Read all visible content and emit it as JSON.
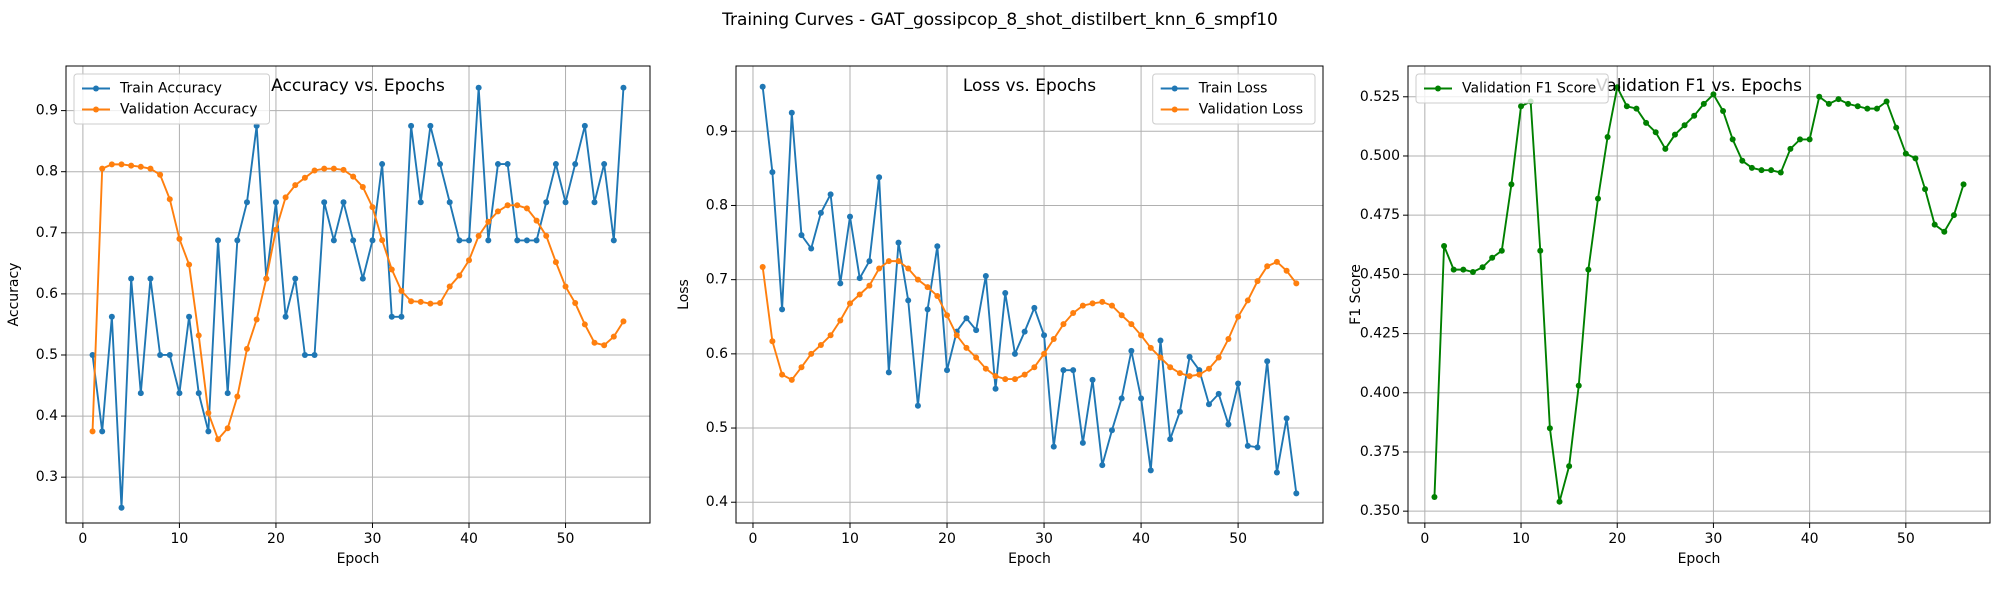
{
  "title": "Training Curves - GAT_gossipcop_8_shot_distilbert_knn_6_smpf10",
  "chart_data": [
    {
      "type": "line",
      "title": "Accuracy vs. Epochs",
      "xlabel": "Epoch",
      "ylabel": "Accuracy",
      "x": [
        1,
        2,
        3,
        4,
        5,
        6,
        7,
        8,
        9,
        10,
        11,
        12,
        13,
        14,
        15,
        16,
        17,
        18,
        19,
        20,
        21,
        22,
        23,
        24,
        25,
        26,
        27,
        28,
        29,
        30,
        31,
        32,
        33,
        34,
        35,
        36,
        37,
        38,
        39,
        40,
        41,
        42,
        43,
        44,
        45,
        46,
        47,
        48,
        49,
        50,
        51,
        52,
        53,
        54,
        55,
        56
      ],
      "series": [
        {
          "name": "Train Accuracy",
          "color": "#1f77b4",
          "values": [
            0.5,
            0.375,
            0.5625,
            0.25,
            0.625,
            0.4375,
            0.625,
            0.5,
            0.5,
            0.4375,
            0.5625,
            0.4375,
            0.375,
            0.6875,
            0.4375,
            0.6875,
            0.75,
            0.875,
            0.625,
            0.75,
            0.5625,
            0.625,
            0.5,
            0.5,
            0.75,
            0.6875,
            0.75,
            0.6875,
            0.625,
            0.6875,
            0.8125,
            0.5625,
            0.5625,
            0.875,
            0.75,
            0.875,
            0.8125,
            0.75,
            0.6875,
            0.6875,
            0.9375,
            0.6875,
            0.8125,
            0.8125,
            0.6875,
            0.6875,
            0.6875,
            0.75,
            0.8125,
            0.75,
            0.8125,
            0.875,
            0.75,
            0.8125,
            0.6875,
            0.9375
          ]
        },
        {
          "name": "Validation Accuracy",
          "color": "#ff7f0e",
          "values": [
            0.375,
            0.805,
            0.812,
            0.812,
            0.81,
            0.808,
            0.805,
            0.795,
            0.755,
            0.69,
            0.648,
            0.532,
            0.405,
            0.362,
            0.38,
            0.432,
            0.51,
            0.558,
            0.625,
            0.705,
            0.758,
            0.778,
            0.79,
            0.802,
            0.805,
            0.805,
            0.803,
            0.792,
            0.775,
            0.742,
            0.688,
            0.64,
            0.605,
            0.588,
            0.587,
            0.584,
            0.585,
            0.612,
            0.63,
            0.655,
            0.695,
            0.718,
            0.735,
            0.745,
            0.745,
            0.74,
            0.72,
            0.695,
            0.652,
            0.612,
            0.585,
            0.55,
            0.52,
            0.516,
            0.53,
            0.555
          ]
        }
      ],
      "xlim": [
        -1.75,
        58.75
      ],
      "ylim": [
        0.225,
        0.973
      ],
      "xticks": [
        0,
        10,
        20,
        30,
        40,
        50
      ],
      "yticks": [
        0.3,
        0.4,
        0.5,
        0.6,
        0.7,
        0.8,
        0.9
      ],
      "grid": true,
      "legend": "upper left"
    },
    {
      "type": "line",
      "title": "Loss vs. Epochs",
      "xlabel": "Epoch",
      "ylabel": "Loss",
      "x": [
        1,
        2,
        3,
        4,
        5,
        6,
        7,
        8,
        9,
        10,
        11,
        12,
        13,
        14,
        15,
        16,
        17,
        18,
        19,
        20,
        21,
        22,
        23,
        24,
        25,
        26,
        27,
        28,
        29,
        30,
        31,
        32,
        33,
        34,
        35,
        36,
        37,
        38,
        39,
        40,
        41,
        42,
        43,
        44,
        45,
        46,
        47,
        48,
        49,
        50,
        51,
        52,
        53,
        54,
        55,
        56
      ],
      "series": [
        {
          "name": "Train Loss",
          "color": "#1f77b4",
          "values": [
            0.96,
            0.845,
            0.66,
            0.925,
            0.76,
            0.742,
            0.79,
            0.815,
            0.695,
            0.785,
            0.702,
            0.725,
            0.838,
            0.575,
            0.75,
            0.672,
            0.53,
            0.66,
            0.745,
            0.578,
            0.63,
            0.648,
            0.632,
            0.705,
            0.553,
            0.682,
            0.6,
            0.63,
            0.662,
            0.625,
            0.475,
            0.578,
            0.578,
            0.48,
            0.565,
            0.45,
            0.497,
            0.54,
            0.604,
            0.54,
            0.443,
            0.618,
            0.485,
            0.522,
            0.596,
            0.578,
            0.532,
            0.546,
            0.505,
            0.56,
            0.476,
            0.474,
            0.59,
            0.44,
            0.513,
            0.412
          ]
        },
        {
          "name": "Validation Loss",
          "color": "#ff7f0e",
          "values": [
            0.717,
            0.617,
            0.572,
            0.565,
            0.582,
            0.6,
            0.612,
            0.625,
            0.645,
            0.668,
            0.68,
            0.692,
            0.715,
            0.725,
            0.725,
            0.715,
            0.7,
            0.69,
            0.678,
            0.652,
            0.625,
            0.608,
            0.595,
            0.58,
            0.57,
            0.566,
            0.566,
            0.572,
            0.582,
            0.6,
            0.62,
            0.64,
            0.655,
            0.665,
            0.668,
            0.67,
            0.665,
            0.652,
            0.64,
            0.625,
            0.608,
            0.595,
            0.582,
            0.574,
            0.57,
            0.572,
            0.58,
            0.595,
            0.62,
            0.65,
            0.672,
            0.698,
            0.718,
            0.724,
            0.712,
            0.695
          ]
        }
      ],
      "xlim": [
        -1.75,
        58.75
      ],
      "ylim": [
        0.372,
        0.988
      ],
      "xticks": [
        0,
        10,
        20,
        30,
        40,
        50
      ],
      "yticks": [
        0.4,
        0.5,
        0.6,
        0.7,
        0.8,
        0.9
      ],
      "grid": true,
      "legend": "upper right"
    },
    {
      "type": "line",
      "title": "Validation F1 vs. Epochs",
      "xlabel": "Epoch",
      "ylabel": "F1 Score",
      "x": [
        1,
        2,
        3,
        4,
        5,
        6,
        7,
        8,
        9,
        10,
        11,
        12,
        13,
        14,
        15,
        16,
        17,
        18,
        19,
        20,
        21,
        22,
        23,
        24,
        25,
        26,
        27,
        28,
        29,
        30,
        31,
        32,
        33,
        34,
        35,
        36,
        37,
        38,
        39,
        40,
        41,
        42,
        43,
        44,
        45,
        46,
        47,
        48,
        49,
        50,
        51,
        52,
        53,
        54,
        55,
        56
      ],
      "series": [
        {
          "name": "Validation F1 Score",
          "color": "#008000",
          "values": [
            0.356,
            0.462,
            0.452,
            0.452,
            0.451,
            0.453,
            0.457,
            0.46,
            0.488,
            0.521,
            0.523,
            0.46,
            0.385,
            0.354,
            0.369,
            0.403,
            0.452,
            0.482,
            0.508,
            0.529,
            0.521,
            0.52,
            0.514,
            0.51,
            0.503,
            0.509,
            0.513,
            0.517,
            0.522,
            0.526,
            0.519,
            0.507,
            0.498,
            0.495,
            0.494,
            0.494,
            0.493,
            0.503,
            0.507,
            0.507,
            0.525,
            0.522,
            0.524,
            0.522,
            0.521,
            0.52,
            0.52,
            0.523,
            0.512,
            0.501,
            0.499,
            0.486,
            0.471,
            0.468,
            0.475,
            0.488
          ]
        }
      ],
      "xlim": [
        -1.75,
        58.75
      ],
      "ylim": [
        0.345,
        0.538
      ],
      "xticks": [
        0,
        10,
        20,
        30,
        40,
        50
      ],
      "yticks": [
        {
          "value": 0.35,
          "label": "0.350"
        },
        {
          "value": 0.375,
          "label": "0.375"
        },
        {
          "value": 0.4,
          "label": "0.400"
        },
        {
          "value": 0.425,
          "label": "0.425"
        },
        {
          "value": 0.45,
          "label": "0.450"
        },
        {
          "value": 0.475,
          "label": "0.475"
        },
        {
          "value": 0.5,
          "label": "0.500"
        },
        {
          "value": 0.525,
          "label": "0.525"
        }
      ],
      "grid": true,
      "legend": "upper left"
    }
  ]
}
